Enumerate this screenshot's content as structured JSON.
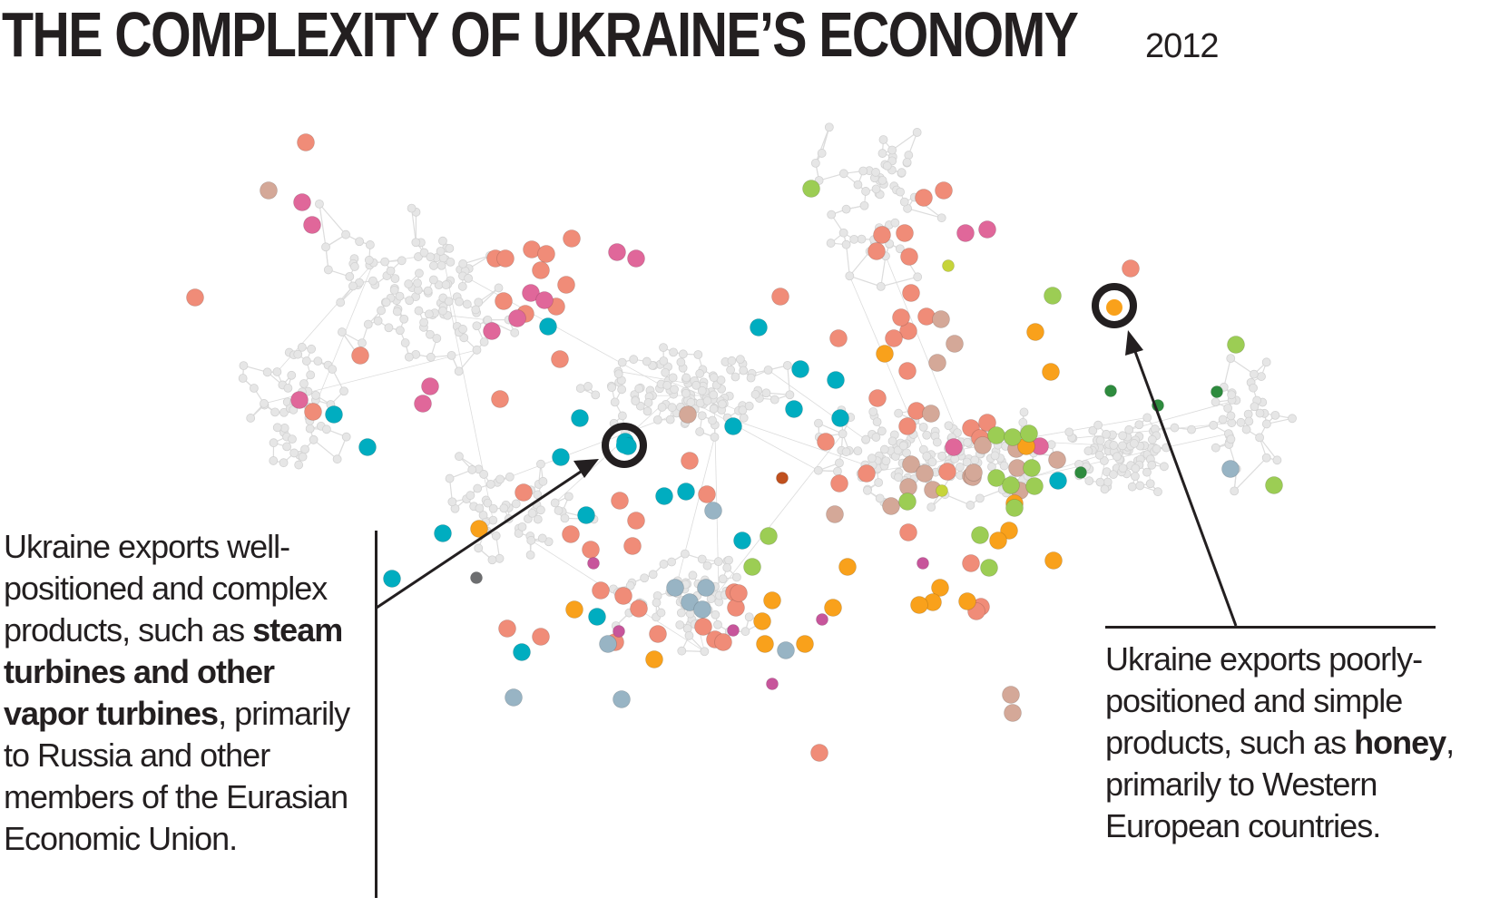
{
  "header": {
    "title": "THE COMPLEXITY OF UKRAINE’S ECONOMY",
    "year": "2012"
  },
  "callouts": {
    "left": {
      "pre": "Ukraine exports well-positioned and complex products, such as ",
      "bold": "steam turbines and other vapor turbines",
      "post": ", primarily to Russia and other members of the Eurasian Economic Union."
    },
    "right": {
      "pre": "Ukraine exports poorly-positioned and simple products, such as ",
      "bold": "honey",
      "post": ", primarily to Western European countries."
    }
  },
  "colors": {
    "salmon": "#f08c78",
    "pink": "#e0679a",
    "teal": "#00adc0",
    "tan": "#d4a898",
    "orange": "#f9a11b",
    "lightgreen": "#9ccd54",
    "grayblue": "#98b4c4",
    "darkgreen": "#2e8b3e",
    "magenta": "#c7559b",
    "darkgray": "#6d6e70",
    "rust": "#c0501e",
    "yellowgreen": "#c6d43a",
    "network": "#dcdcdc",
    "text": "#231f20"
  },
  "highlights": [
    {
      "name": "steam-turbines",
      "color": "teal"
    },
    {
      "name": "honey",
      "color": "orange"
    }
  ]
}
